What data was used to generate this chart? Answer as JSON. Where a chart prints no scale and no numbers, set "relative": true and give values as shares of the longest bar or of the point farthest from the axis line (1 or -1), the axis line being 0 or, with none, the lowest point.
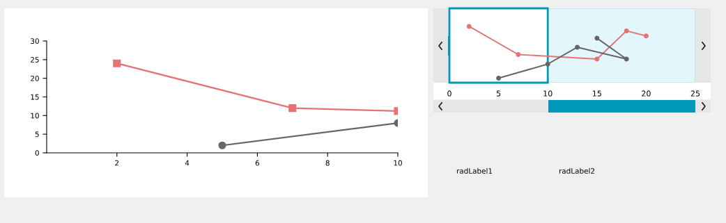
{
  "chart_data": [
    {
      "type": "line",
      "xlim": [
        0,
        10
      ],
      "xticks": [
        2,
        4,
        6,
        8,
        10
      ],
      "ylim": [
        0,
        30
      ],
      "yticks": [
        0,
        5,
        10,
        15,
        20,
        25,
        30
      ],
      "grid": false,
      "legend": false,
      "series": [
        {
          "color": "#e57373",
          "marker": "square",
          "x": [
            2,
            7,
            10
          ],
          "values": [
            24,
            12,
            11.2
          ]
        },
        {
          "color": "#666666",
          "marker": "circle",
          "x": [
            5,
            10
          ],
          "values": [
            2,
            8
          ]
        }
      ]
    },
    {
      "type": "line",
      "relative": true,
      "xlim": [
        0,
        25
      ],
      "xticks": [
        0,
        5,
        10,
        15,
        20,
        25
      ],
      "grid": false,
      "legend": false,
      "marker": "circle",
      "series": [
        {
          "color": "#e57373",
          "x": [
            2,
            7,
            15,
            18,
            20
          ],
          "values": [
            1,
            0.5,
            0.42,
            0.92,
            0.83
          ]
        },
        {
          "color": "#666666",
          "x": [
            5,
            10,
            13,
            18,
            15
          ],
          "values": [
            0.08,
            0.33,
            0.63,
            0.42,
            0.79
          ]
        }
      ],
      "bands": [
        {
          "axis": "x",
          "from": 10,
          "to": 25,
          "color": "#e3f6fb"
        }
      ],
      "annotations": [
        "radLabel1",
        "radLabel2"
      ]
    }
  ]
}
